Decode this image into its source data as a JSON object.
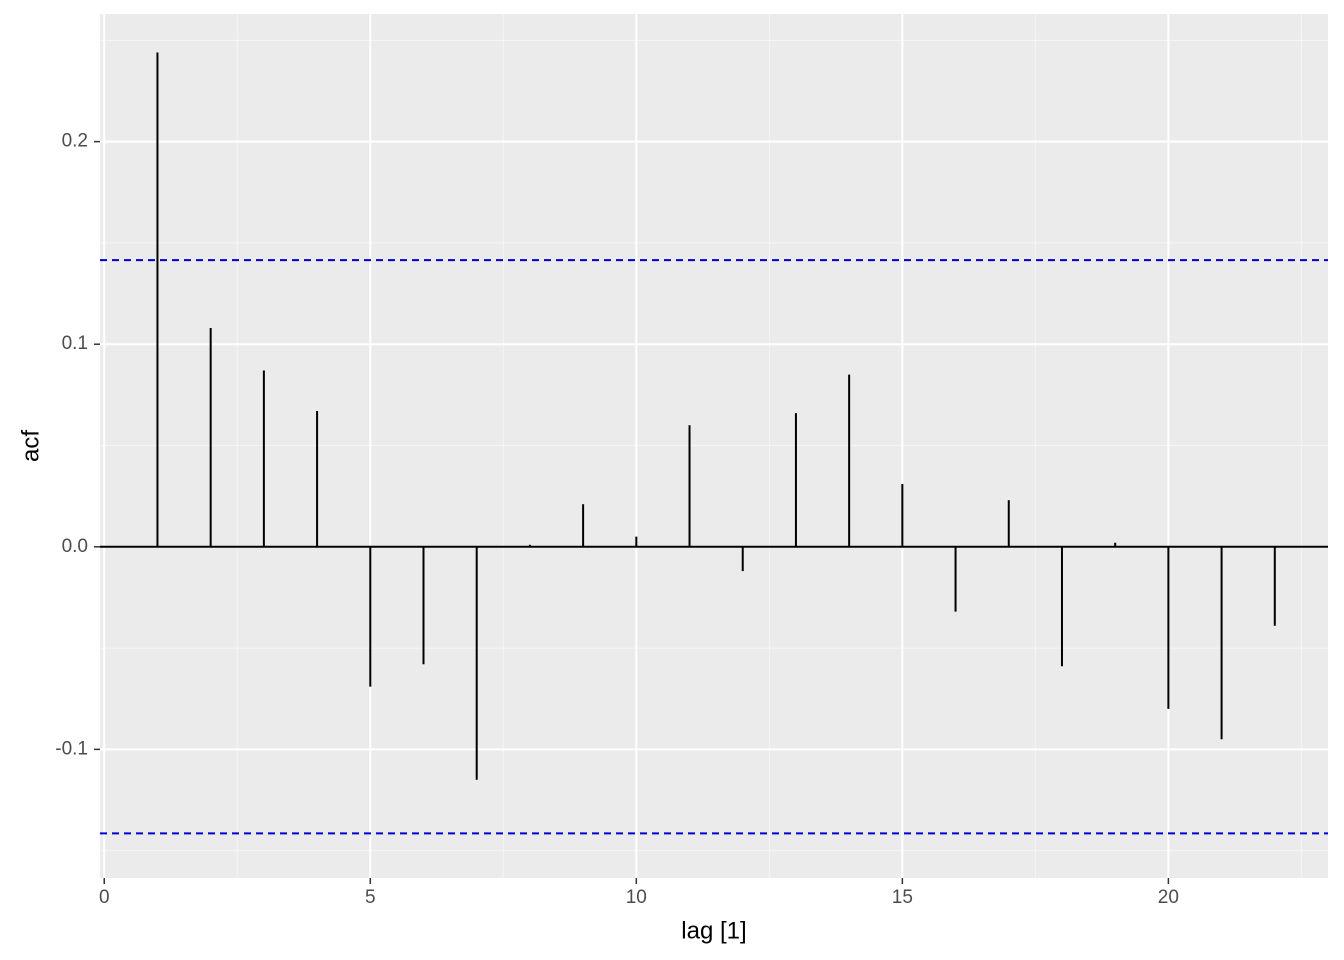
{
  "chart_data": {
    "type": "acf",
    "x_label": "lag [1]",
    "y_label": "acf",
    "x": [
      1,
      2,
      3,
      4,
      5,
      6,
      7,
      8,
      9,
      10,
      11,
      12,
      13,
      14,
      15,
      16,
      17,
      18,
      19,
      20,
      21,
      22
    ],
    "values": [
      0.244,
      0.108,
      0.087,
      0.067,
      -0.069,
      -0.058,
      -0.115,
      0.001,
      0.021,
      0.005,
      0.06,
      -0.012,
      0.066,
      0.085,
      0.031,
      -0.032,
      0.023,
      -0.059,
      0.002,
      -0.08,
      -0.095,
      -0.039
    ],
    "color": "#000000",
    "ci_lines": [
      0.1415,
      -0.1415
    ],
    "ci_color": "#0000cc",
    "xlim": [
      -0.08,
      23
    ],
    "ylim": [
      -0.1635,
      0.263
    ],
    "xticks": [
      0,
      5,
      10,
      15,
      20
    ],
    "yticks": [
      -0.1,
      {
        "value": 0,
        "label": "0.0"
      },
      0.1,
      0.2
    ],
    "x_minor_breaks": [
      2.5,
      7.5,
      12.5,
      17.5,
      22.5
    ],
    "y_minor_breaks": [
      -0.15,
      -0.05,
      0.05,
      0.15,
      0.25
    ],
    "grid": true
  }
}
